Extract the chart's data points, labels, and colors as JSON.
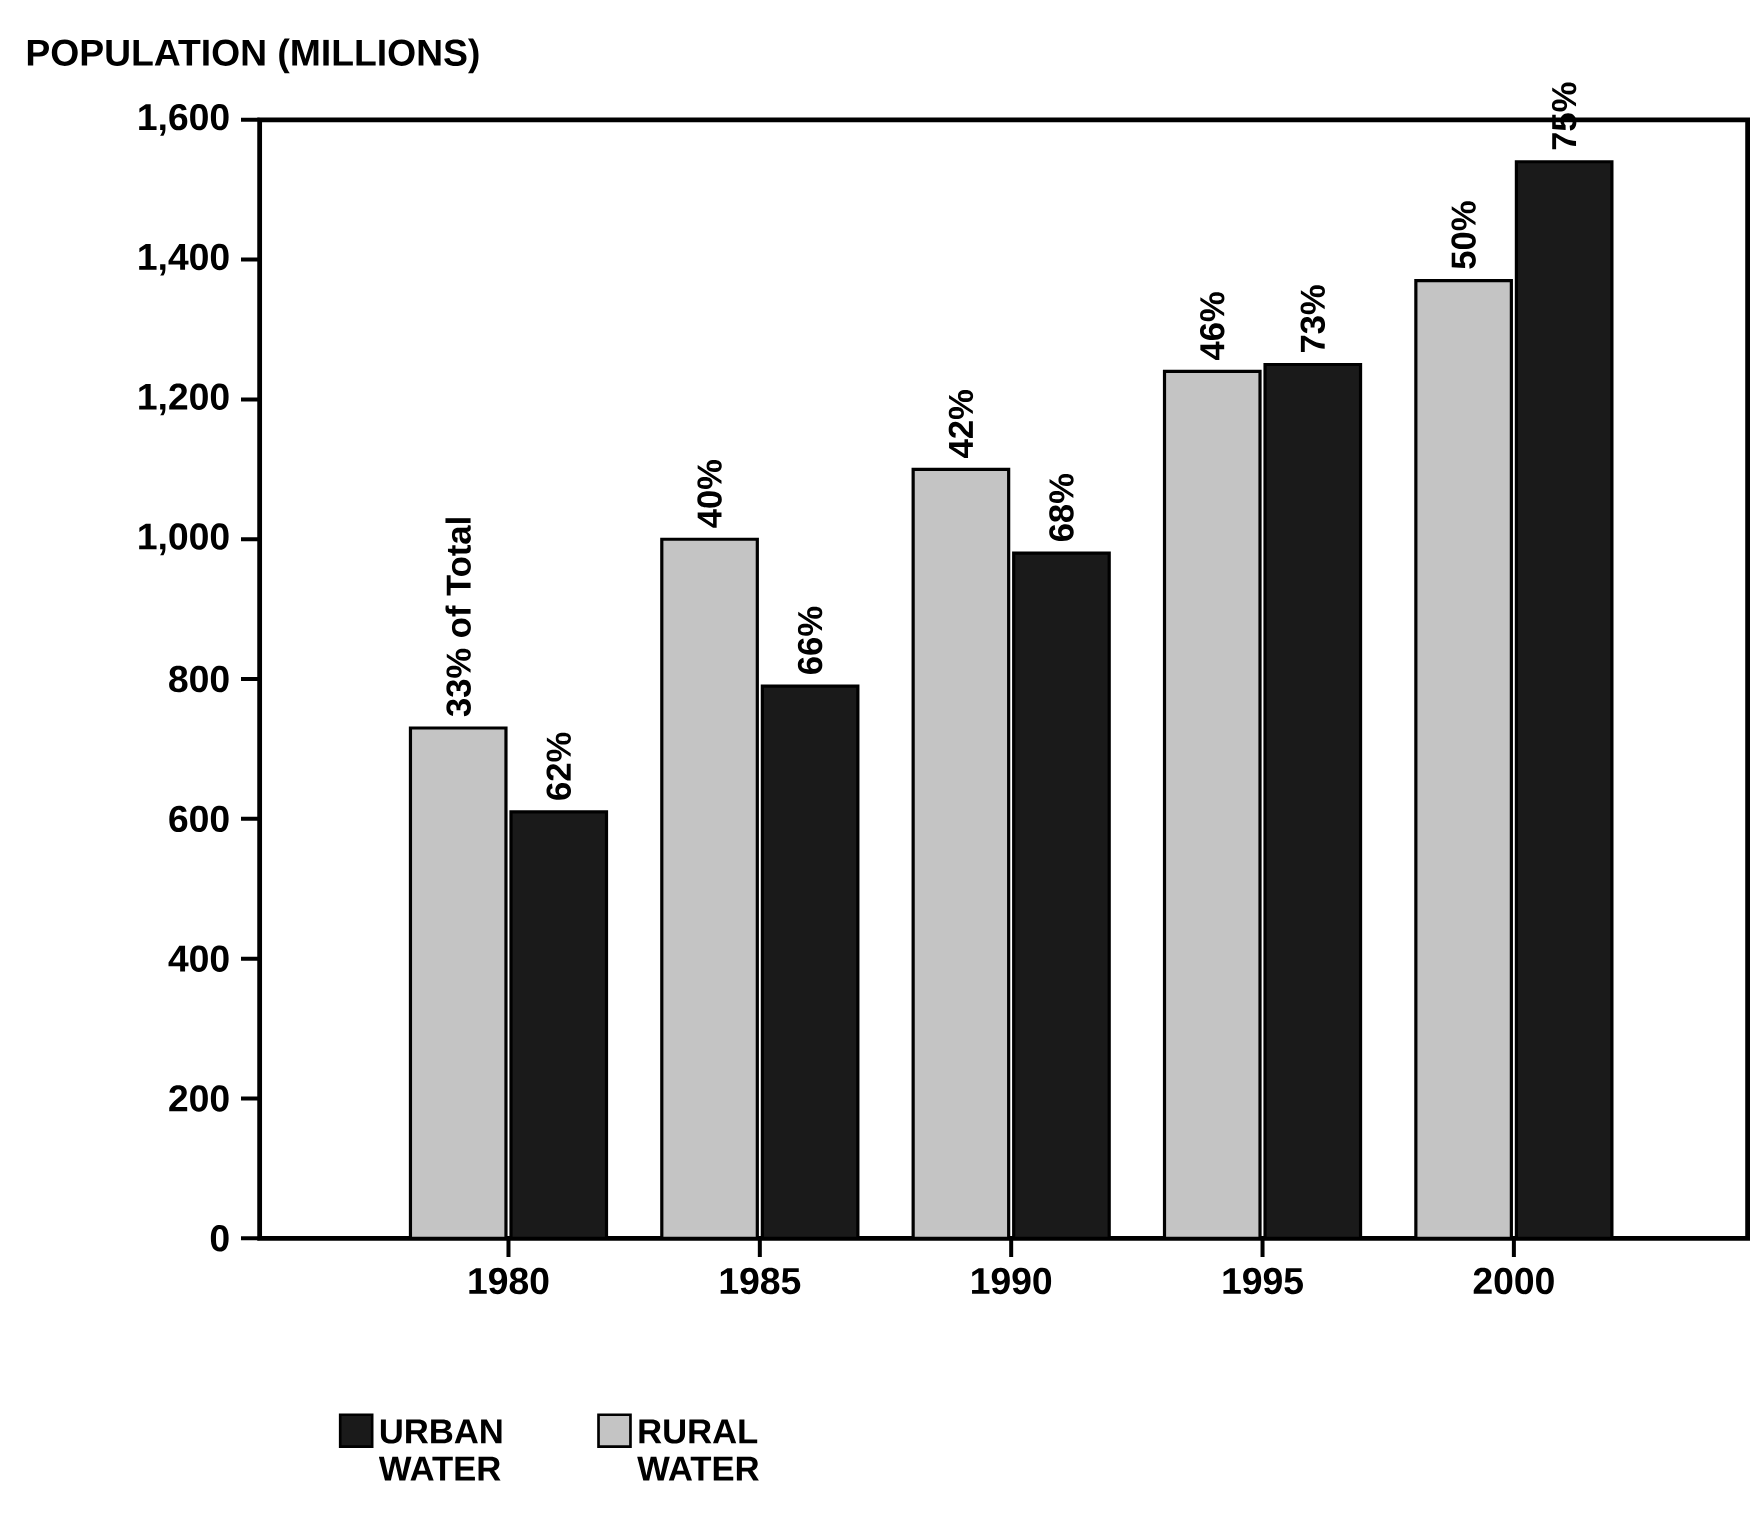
{
  "chart_data": {
    "type": "bar",
    "title": "POPULATION (MILLIONS)",
    "categories": [
      "1980",
      "1985",
      "1990",
      "1995",
      "2000"
    ],
    "series": [
      {
        "name": "RURAL WATER",
        "color": "#c4c4c4",
        "values": [
          730,
          1000,
          1100,
          1240,
          1370
        ]
      },
      {
        "name": "URBAN WATER",
        "color": "#1a1a1a",
        "values": [
          610,
          790,
          980,
          1250,
          1540
        ]
      }
    ],
    "annotations": [
      {
        "text": "33% of Total",
        "x": "1980",
        "y": 730
      },
      {
        "text": "62%",
        "x": "1980",
        "y": 610
      },
      {
        "text": "40%",
        "x": "1985",
        "y": 1000
      },
      {
        "text": "66%",
        "x": "1985",
        "y": 790
      },
      {
        "text": "42%",
        "x": "1990",
        "y": 1100
      },
      {
        "text": "68%",
        "x": "1990",
        "y": 980
      },
      {
        "text": "46%",
        "x": "1995",
        "y": 1240
      },
      {
        "text": "73%",
        "x": "1995",
        "y": 1250
      },
      {
        "text": "50%",
        "x": "2000",
        "y": 1370
      },
      {
        "text": "75%",
        "x": "2000",
        "y": 1540
      }
    ],
    "ylim": [
      0,
      1600
    ],
    "yticks": [
      0,
      200,
      400,
      600,
      800,
      {
        "value": 1000,
        "label": "1,000"
      },
      {
        "value": 1200,
        "label": "1,200"
      },
      {
        "value": 1400,
        "label": "1,400"
      },
      {
        "value": 1600,
        "label": "1,600"
      }
    ],
    "grid": false,
    "legend": "bottom"
  }
}
